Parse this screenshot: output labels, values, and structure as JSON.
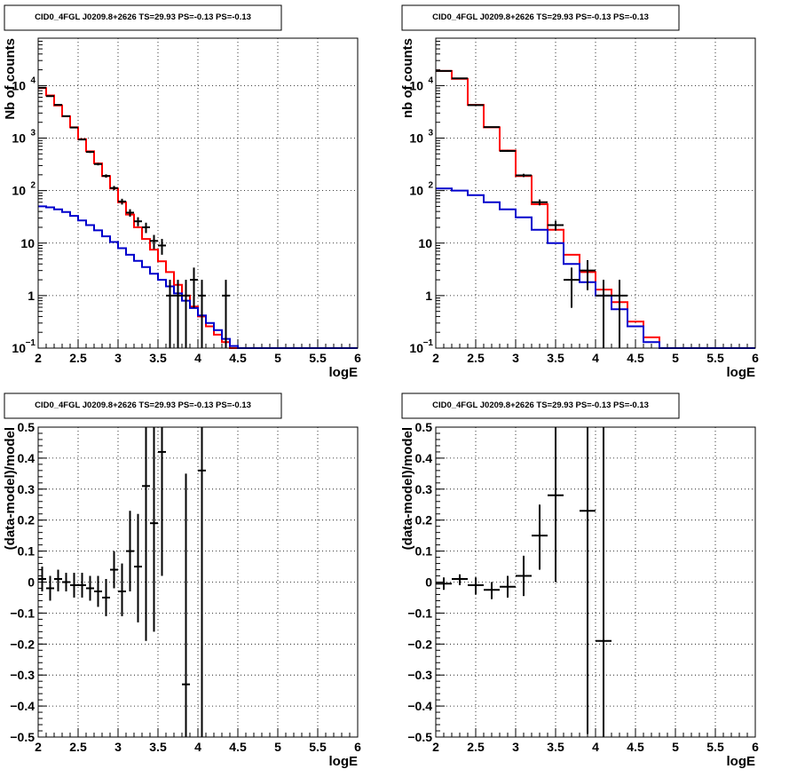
{
  "colors": {
    "data": "#000000",
    "total_model": "#ff0000",
    "background_model": "#0000cc",
    "grid": "#000000"
  },
  "chart_data": [
    {
      "type": "histogram",
      "title": "CID0_4FGL J0209.8+2626 TS=29.93 PS=-0.13 PS=-0.13",
      "xlabel": "logE",
      "ylabel": "Nb of counts",
      "log_y": true,
      "grid": true,
      "xlim": [
        2,
        6
      ],
      "ylim": [
        0.1,
        80000
      ],
      "x_ticks": [
        "2",
        "2.5",
        "3",
        "3.5",
        "4",
        "4.5",
        "5",
        "5.5",
        "6"
      ],
      "y_ticks": [
        {
          "value": 0.1,
          "base": "10",
          "exp": "−1"
        },
        {
          "value": 1,
          "base": "1",
          "exp": ""
        },
        {
          "value": 10,
          "base": "10",
          "exp": ""
        },
        {
          "value": 100,
          "base": "10",
          "exp": "2"
        },
        {
          "value": 1000,
          "base": "10",
          "exp": "3"
        },
        {
          "value": 10000,
          "base": "10",
          "exp": "4"
        }
      ],
      "bin_width": 0.1,
      "series": [
        {
          "role": "total_model",
          "x": [
            2.05,
            2.15,
            2.25,
            2.35,
            2.45,
            2.55,
            2.65,
            2.75,
            2.85,
            2.95,
            3.05,
            3.15,
            3.25,
            3.35,
            3.45,
            3.55,
            3.65,
            3.75,
            3.85,
            3.95,
            4.05,
            4.15,
            4.25,
            4.35,
            4.45,
            4.55,
            4.65,
            4.75,
            4.85,
            4.95,
            5.05,
            5.15,
            5.25,
            5.35,
            5.45,
            5.55,
            5.65,
            5.75,
            5.85,
            5.95
          ],
          "values": [
            9000,
            6500,
            4200,
            2600,
            1600,
            950,
            560,
            330,
            190,
            110,
            60,
            35,
            20,
            12,
            7.5,
            4.5,
            2.8,
            1.6,
            1.0,
            0.62,
            0.4,
            0.26,
            0.18,
            0.13,
            0.1,
            0.1,
            0.1,
            0.1,
            0.1,
            0.1,
            0.1,
            0.1,
            0.1,
            0.1,
            0.1,
            0.1,
            0.1,
            0.1,
            0.1,
            0.1
          ]
        },
        {
          "role": "background_model",
          "x": [
            2.05,
            2.15,
            2.25,
            2.35,
            2.45,
            2.55,
            2.65,
            2.75,
            2.85,
            2.95,
            3.05,
            3.15,
            3.25,
            3.35,
            3.45,
            3.55,
            3.65,
            3.75,
            3.85,
            3.95,
            4.05,
            4.15,
            4.25,
            4.35,
            4.45,
            4.55,
            4.65,
            4.75,
            4.85,
            4.95,
            5.05,
            5.15,
            5.25,
            5.35,
            5.45,
            5.55,
            5.65,
            5.75,
            5.85,
            5.95
          ],
          "values": [
            50,
            48,
            44,
            39,
            33,
            27,
            22,
            17.5,
            13.5,
            10.5,
            8,
            6,
            4.6,
            3.5,
            2.6,
            2,
            1.5,
            1.1,
            0.8,
            0.58,
            0.42,
            0.3,
            0.22,
            0.15,
            0.11,
            0.1,
            0.1,
            0.1,
            0.1,
            0.1,
            0.1,
            0.1,
            0.1,
            0.1,
            0.1,
            0.1,
            0.1,
            0.1,
            0.1,
            0.1
          ]
        },
        {
          "role": "data",
          "x": [
            2.05,
            2.15,
            2.25,
            2.35,
            2.45,
            2.55,
            2.65,
            2.75,
            2.85,
            2.95,
            3.05,
            3.15,
            3.25,
            3.35,
            3.45,
            3.55,
            3.65,
            3.75,
            3.85,
            3.95,
            4.05,
            4.35
          ],
          "values": [
            9100,
            6300,
            4300,
            2620,
            1590,
            940,
            545,
            320,
            190,
            112,
            62,
            38,
            26,
            20,
            11,
            9,
            1,
            1,
            1,
            2,
            1,
            1
          ]
        }
      ]
    },
    {
      "type": "histogram",
      "title": "CID0_4FGL J0209.8+2626 TS=29.93 PS=-0.13 PS=-0.13",
      "xlabel": "logE",
      "ylabel": "nb of counts",
      "log_y": true,
      "grid": true,
      "xlim": [
        2,
        6
      ],
      "ylim": [
        0.1,
        80000
      ],
      "x_ticks": [
        "2",
        "2.5",
        "3",
        "3.5",
        "4",
        "4.5",
        "5",
        "5.5",
        "6"
      ],
      "y_ticks": [
        {
          "value": 0.1,
          "base": "10",
          "exp": "−1"
        },
        {
          "value": 1,
          "base": "1",
          "exp": ""
        },
        {
          "value": 10,
          "base": "10",
          "exp": ""
        },
        {
          "value": 100,
          "base": "10",
          "exp": "2"
        },
        {
          "value": 1000,
          "base": "10",
          "exp": "3"
        },
        {
          "value": 10000,
          "base": "10",
          "exp": "4"
        }
      ],
      "bin_width": 0.2,
      "series": [
        {
          "role": "total_model",
          "x": [
            2.1,
            2.3,
            2.5,
            2.7,
            2.9,
            3.1,
            3.3,
            3.5,
            3.7,
            3.9,
            4.1,
            4.3,
            4.5,
            4.7,
            4.9,
            5.1,
            5.3,
            5.5,
            5.7,
            5.9
          ],
          "values": [
            19000,
            13500,
            4300,
            1600,
            580,
            190,
            55,
            18,
            6,
            2.8,
            1.3,
            0.75,
            0.32,
            0.16,
            0.1,
            0.1,
            0.1,
            0.1,
            0.1,
            0.1
          ]
        },
        {
          "role": "background_model",
          "x": [
            2.1,
            2.3,
            2.5,
            2.7,
            2.9,
            3.1,
            3.3,
            3.5,
            3.7,
            3.9,
            4.1,
            4.3,
            4.5,
            4.7,
            4.9,
            5.1,
            5.3,
            5.5,
            5.7,
            5.9
          ],
          "values": [
            110,
            100,
            82,
            60,
            44,
            31,
            18,
            10,
            4,
            1.8,
            1,
            0.55,
            0.26,
            0.13,
            0.1,
            0.1,
            0.1,
            0.1,
            0.1,
            0.1
          ]
        },
        {
          "role": "data",
          "x": [
            2.1,
            2.3,
            2.5,
            2.7,
            2.9,
            3.1,
            3.3,
            3.5,
            3.7,
            3.9,
            4.1,
            4.3
          ],
          "values": [
            19000,
            13700,
            4250,
            1620,
            570,
            195,
            60,
            22,
            2,
            3,
            1,
            1
          ]
        }
      ]
    },
    {
      "type": "scatter",
      "title": "CID0_4FGL J0209.8+2626 TS=29.93 PS=-0.13 PS=-0.13",
      "xlabel": "logE",
      "ylabel": "(data-model)/model",
      "grid": true,
      "xlim": [
        2,
        6
      ],
      "ylim": [
        -0.5,
        0.5
      ],
      "x_ticks": [
        "2",
        "2.5",
        "3",
        "3.5",
        "4",
        "4.5",
        "5",
        "5.5",
        "6"
      ],
      "y_ticks": [
        "−0.5",
        "−0.4",
        "−0.3",
        "−0.2",
        "−0.1",
        "0",
        "0.1",
        "0.2",
        "0.3",
        "0.4",
        "0.5"
      ],
      "x_err": 0.05,
      "series": [
        {
          "role": "residuals",
          "x": [
            2.05,
            2.15,
            2.25,
            2.35,
            2.45,
            2.55,
            2.65,
            2.75,
            2.85,
            2.95,
            3.05,
            3.15,
            3.25,
            3.35,
            3.45,
            3.55,
            3.85,
            4.05
          ],
          "y": [
            0.01,
            -0.02,
            0.01,
            0.0,
            -0.01,
            -0.01,
            -0.02,
            -0.03,
            -0.05,
            0.04,
            -0.03,
            0.1,
            0.05,
            0.31,
            0.19,
            0.42,
            -0.33,
            0.36
          ],
          "y_err_low": [
            0.04,
            0.04,
            0.04,
            0.03,
            0.04,
            0.04,
            0.04,
            0.05,
            0.06,
            0.06,
            0.08,
            0.13,
            0.18,
            0.5,
            0.35,
            0.4,
            0.68,
            0.86
          ],
          "y_err_high": [
            0.04,
            0.04,
            0.03,
            0.03,
            0.04,
            0.04,
            0.04,
            0.05,
            0.06,
            0.06,
            0.09,
            0.13,
            0.17,
            0.5,
            0.4,
            0.5,
            0.68,
            0.86
          ]
        }
      ]
    },
    {
      "type": "scatter",
      "title": "CID0_4FGL J0209.8+2626 TS=29.93 PS=-0.13 PS=-0.13",
      "xlabel": "logE",
      "ylabel": "(data-model)/model",
      "grid": true,
      "xlim": [
        2,
        6
      ],
      "ylim": [
        -0.5,
        0.5
      ],
      "x_ticks": [
        "2",
        "2.5",
        "3",
        "3.5",
        "4",
        "4.5",
        "5",
        "5.5",
        "6"
      ],
      "y_ticks": [
        "−0.5",
        "−0.4",
        "−0.3",
        "−0.2",
        "−0.1",
        "0",
        "0.1",
        "0.2",
        "0.3",
        "0.4",
        "0.5"
      ],
      "x_err": 0.1,
      "series": [
        {
          "role": "residuals",
          "x": [
            2.1,
            2.3,
            2.5,
            2.7,
            2.9,
            3.1,
            3.3,
            3.5,
            3.9,
            4.1
          ],
          "y": [
            -0.005,
            0.01,
            -0.01,
            -0.025,
            -0.015,
            0.02,
            0.15,
            0.28,
            0.23,
            -0.19
          ],
          "y_err_low": [
            0.02,
            0.02,
            0.03,
            0.03,
            0.035,
            0.065,
            0.11,
            0.28,
            0.72,
            0.81
          ],
          "y_err_high": [
            0.02,
            0.015,
            0.025,
            0.025,
            0.035,
            0.065,
            0.1,
            0.25,
            0.3,
            0.7
          ]
        }
      ]
    }
  ]
}
